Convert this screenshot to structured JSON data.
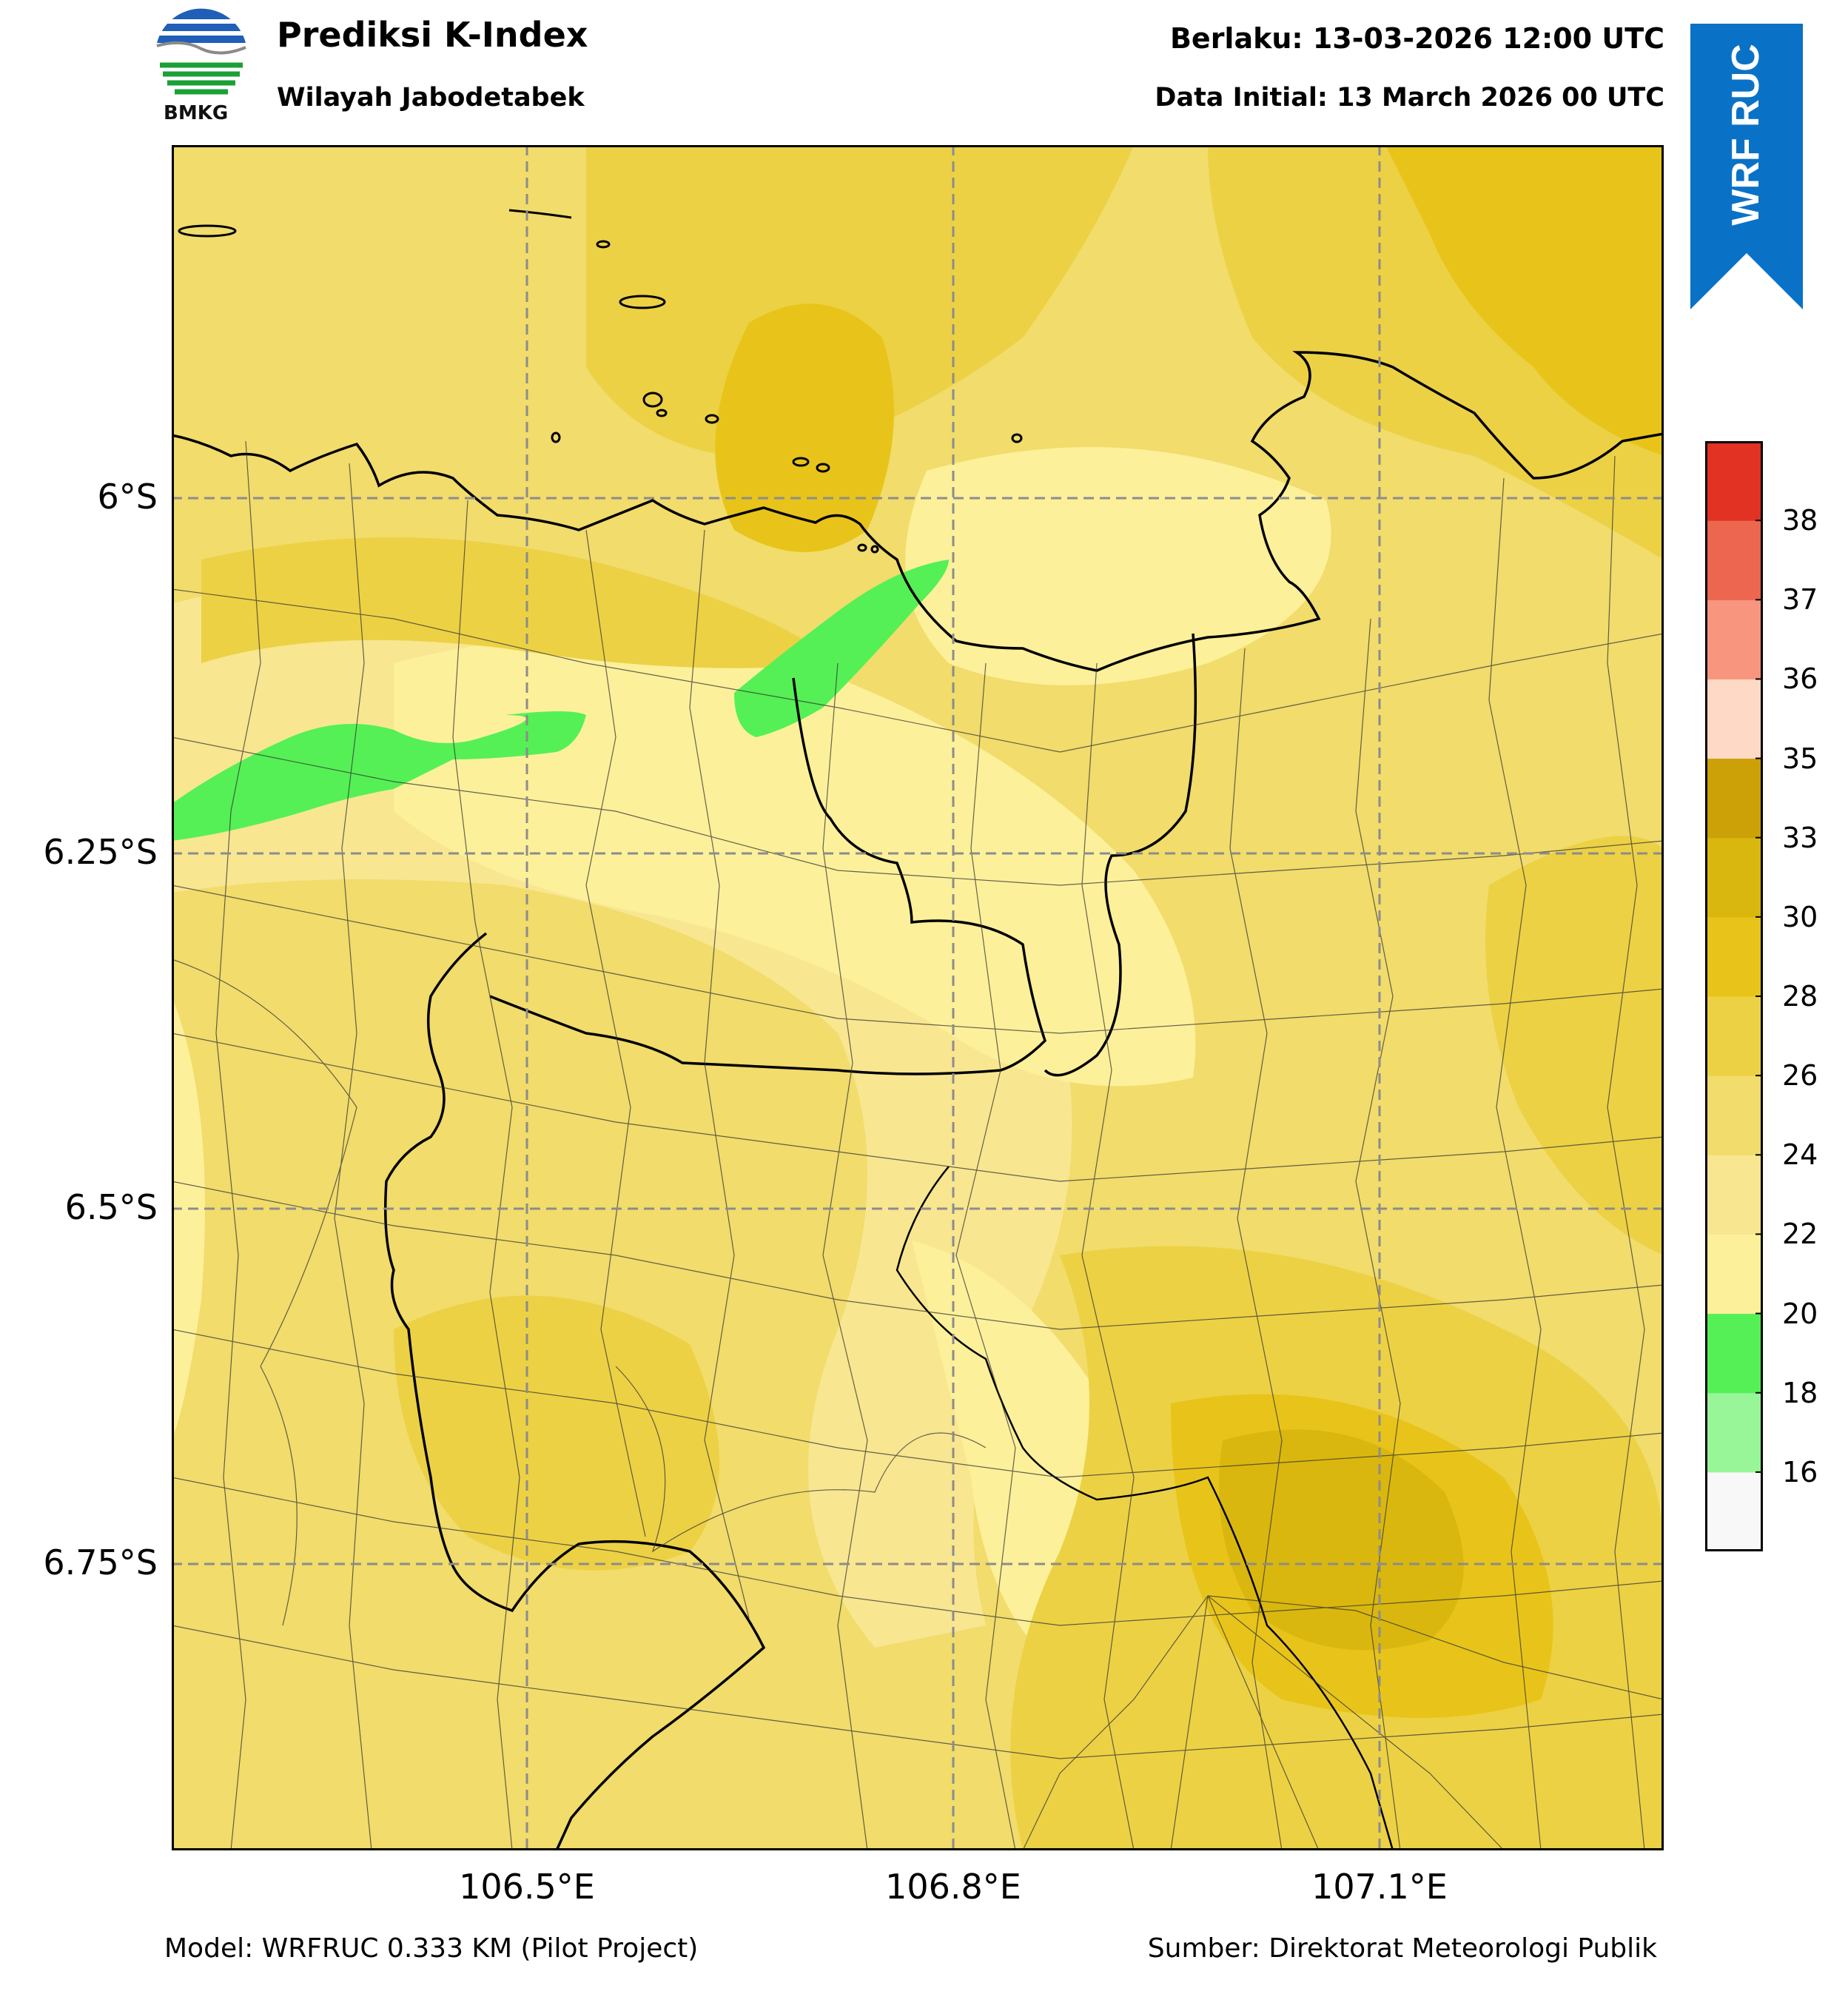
{
  "header": {
    "title": "Prediksi K-Index",
    "subtitle": "Wilayah Jabodetabek",
    "valid_time": "Berlaku: 13-03-2026 12:00 UTC",
    "data_initial": "Data Initial: 13 March 2026 00 UTC",
    "logo_text": "BMKG",
    "ribbon_text": "WRF RUC"
  },
  "map": {
    "lat_labels": [
      "6°S",
      "6.25°S",
      "6.5°S",
      "6.75°S"
    ],
    "lon_labels": [
      "106.5°E",
      "106.8°E",
      "107.1°E"
    ],
    "gridlines": true,
    "gridline_style": "dashed grey",
    "lat_range": [
      -6.98,
      -5.78
    ],
    "lon_range": [
      106.25,
      107.3
    ]
  },
  "colorbar": {
    "tick_labels": [
      "16",
      "18",
      "20",
      "22",
      "24",
      "26",
      "28",
      "30",
      "33",
      "35",
      "36",
      "37",
      "38"
    ],
    "bins": [
      {
        "from": null,
        "to": 16,
        "color": "#f8f8f8"
      },
      {
        "from": 16,
        "to": 18,
        "color": "#98f598"
      },
      {
        "from": 18,
        "to": 20,
        "color": "#55f055"
      },
      {
        "from": 20,
        "to": 22,
        "color": "#fdf09a"
      },
      {
        "from": 22,
        "to": 24,
        "color": "#f8e690"
      },
      {
        "from": 24,
        "to": 26,
        "color": "#f1dc6c"
      },
      {
        "from": 26,
        "to": 28,
        "color": "#ecd145"
      },
      {
        "from": 28,
        "to": 30,
        "color": "#e8c41a"
      },
      {
        "from": 30,
        "to": 33,
        "color": "#dab70e"
      },
      {
        "from": 33,
        "to": 35,
        "color": "#cca007"
      },
      {
        "from": 35,
        "to": 36,
        "color": "#fed9c6"
      },
      {
        "from": 36,
        "to": 37,
        "color": "#f7957e"
      },
      {
        "from": 37,
        "to": 38,
        "color": "#ec6650"
      },
      {
        "from": 38,
        "to": null,
        "color": "#e13224"
      }
    ]
  },
  "footer": {
    "model": "Model: WRFRUC 0.333 KM (Pilot Project)",
    "source": "Sumber: Direktorat Meteorologi Publik"
  },
  "colors": {
    "ribbon": "#0a72c6",
    "base_field": "#f1dc6c",
    "low_field": "#fdf09a",
    "high_field": "#e8c41a",
    "highest_field": "#dab70e",
    "green_field": "#55f055"
  }
}
